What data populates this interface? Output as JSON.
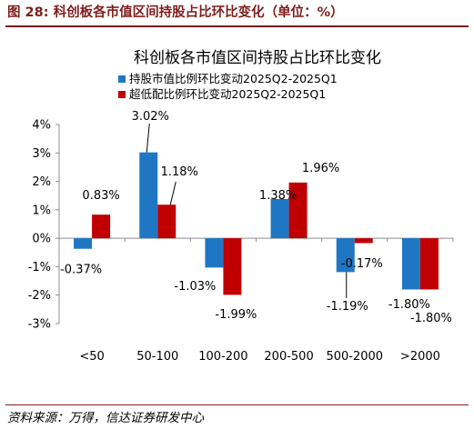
{
  "figure": {
    "number_label": "图 28:",
    "title": "科创板各市值区间持股占比环比变化（单位：%）"
  },
  "source": "资料来源：万得，信达证券研发中心",
  "colors": {
    "accent": "#7f1d1d",
    "series1": "#1f77c4",
    "series2": "#c00000",
    "axis": "#8c8c8c",
    "text": "#000000"
  },
  "chart_data": {
    "type": "bar",
    "title": "科创板各市值区间持股占比环比变化",
    "categories": [
      "<50",
      "50-100",
      "100-200",
      "200-500",
      "500-2000",
      ">2000"
    ],
    "series": [
      {
        "name": "持股市值比例环比变动2025Q2-2025Q1",
        "values": [
          -0.37,
          3.02,
          -1.03,
          1.38,
          -1.19,
          -1.8
        ],
        "labels": [
          "-0.37%",
          "3.02%",
          "-1.03%",
          "1.38%",
          "-1.19%",
          "-1.80%"
        ]
      },
      {
        "name": "超低配比例环比变动2025Q2-2025Q1",
        "values": [
          0.83,
          1.18,
          -1.99,
          1.96,
          -0.17,
          -1.8
        ],
        "labels": [
          "0.83%",
          "1.18%",
          "-1.99%",
          "1.96%",
          "-0.17%",
          "-1.80%"
        ]
      }
    ],
    "ylim": [
      -3,
      4
    ],
    "yticks": [
      -3,
      -2,
      -1,
      0,
      1,
      2,
      3,
      4
    ],
    "ytick_labels": [
      "-3%",
      "-2%",
      "-1%",
      "0%",
      "1%",
      "2%",
      "3%",
      "4%"
    ],
    "xlabel": "",
    "ylabel": "",
    "legend_position": "top-center",
    "grid": false
  }
}
